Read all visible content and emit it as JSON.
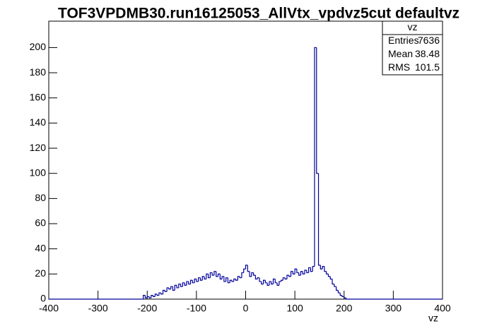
{
  "chart_data": {
    "type": "histogram",
    "title": "TOF3VPDMB30.run16125053_AllVtx_vpdvz5cut defaultvz",
    "x_label": "vz",
    "color": "#000099",
    "bins": [
      -400,
      -212,
      -208,
      -204,
      -200,
      -196,
      -192,
      -188,
      -184,
      -180,
      -176,
      -172,
      -168,
      -164,
      -160,
      -156,
      -152,
      -148,
      -144,
      -140,
      -136,
      -132,
      -128,
      -124,
      -120,
      -116,
      -112,
      -108,
      -104,
      -100,
      -96,
      -92,
      -88,
      -84,
      -80,
      -76,
      -72,
      -68,
      -64,
      -60,
      -56,
      -52,
      -48,
      -44,
      -40,
      -36,
      -32,
      -28,
      -24,
      -20,
      -16,
      -12,
      -8,
      -4,
      0,
      4,
      8,
      12,
      16,
      20,
      24,
      28,
      32,
      36,
      40,
      44,
      48,
      52,
      56,
      60,
      64,
      68,
      72,
      76,
      80,
      84,
      88,
      92,
      96,
      100,
      104,
      108,
      112,
      116,
      120,
      124,
      128,
      132,
      136,
      140,
      144,
      148,
      152,
      156,
      160,
      164,
      168,
      172,
      176,
      180,
      184,
      188,
      192,
      196,
      200,
      204,
      208,
      400
    ],
    "values": [
      0,
      0,
      3,
      1,
      2,
      1,
      3,
      2,
      4,
      3,
      5,
      4,
      7,
      6,
      9,
      8,
      10,
      7,
      11,
      9,
      12,
      10,
      13,
      11,
      14,
      12,
      15,
      13,
      16,
      14,
      17,
      15,
      18,
      16,
      20,
      17,
      21,
      19,
      22,
      18,
      20,
      16,
      18,
      14,
      17,
      13,
      15,
      14,
      16,
      15,
      18,
      17,
      21,
      24,
      27,
      22,
      18,
      21,
      19,
      16,
      17,
      14,
      12,
      15,
      13,
      11,
      14,
      12,
      16,
      13,
      11,
      14,
      15,
      17,
      16,
      19,
      18,
      22,
      20,
      24,
      21,
      19,
      22,
      20,
      23,
      21,
      25,
      22,
      26,
      200,
      100,
      27,
      24,
      26,
      22,
      20,
      18,
      16,
      12,
      10,
      7,
      5,
      3,
      2,
      1,
      0,
      0
    ],
    "xlim": [
      -400,
      400
    ],
    "ylim": [
      0,
      221
    ],
    "xticks": [
      -400,
      -300,
      -200,
      -100,
      0,
      100,
      200,
      300,
      400
    ],
    "yticks": [
      0,
      20,
      40,
      60,
      80,
      100,
      120,
      140,
      160,
      180,
      200
    ],
    "stats": {
      "title": "vz",
      "rows": [
        [
          "Entries",
          "7636"
        ],
        [
          "Mean",
          "38.48"
        ],
        [
          "RMS",
          "101.5"
        ]
      ]
    }
  }
}
